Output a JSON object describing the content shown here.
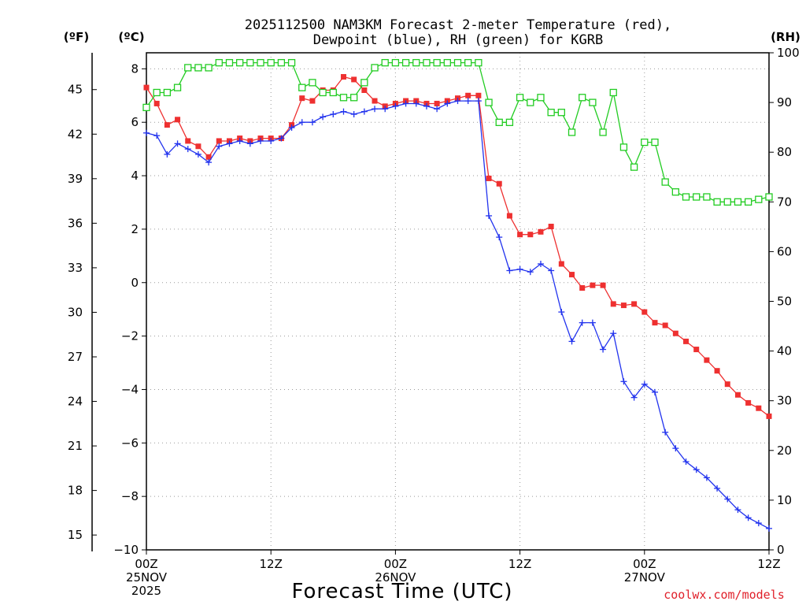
{
  "colors": {
    "temperature": "#ee3030",
    "dewpoint": "#2233ee",
    "rh": "#22cc22",
    "grid": "#9a9a9a",
    "credit": "#e0202a"
  },
  "chart_data": {
    "type": "line",
    "title_line1": "2025112500 NAM3KM Forecast 2-meter Temperature (red),",
    "title_line2": "Dewpoint (blue), RH (green) for KGRB",
    "xlabel": "Forecast Time (UTC)",
    "credit": "coolwx.com/models",
    "unit_f": "(ºF)",
    "unit_c": "(ºC)",
    "unit_rh": "(RH)",
    "x_range_hours": [
      0,
      60
    ],
    "y_celsius_range": [
      -10,
      8.6
    ],
    "y_rh_range": [
      0,
      100
    ],
    "celsius_ticks": [
      "−10",
      "−8",
      "−6",
      "−4",
      "−2",
      "0",
      "2",
      "4",
      "6",
      "8"
    ],
    "fahrenheit_ticks": [
      "15",
      "18",
      "21",
      "24",
      "27",
      "30",
      "33",
      "36",
      "39",
      "42",
      "45"
    ],
    "rh_ticks": [
      "0",
      "10",
      "20",
      "30",
      "40",
      "50",
      "60",
      "70",
      "80",
      "90",
      "100"
    ],
    "x_ticks": [
      {
        "hour": 0,
        "lines": [
          "00Z",
          "25NOV",
          "2025"
        ]
      },
      {
        "hour": 12,
        "lines": [
          "12Z"
        ]
      },
      {
        "hour": 24,
        "lines": [
          "00Z",
          "26NOV"
        ]
      },
      {
        "hour": 36,
        "lines": [
          "12Z"
        ]
      },
      {
        "hour": 48,
        "lines": [
          "00Z",
          "27NOV"
        ]
      },
      {
        "hour": 60,
        "lines": [
          "12Z"
        ]
      }
    ],
    "series": [
      {
        "name": "Temperature",
        "unit": "C",
        "hours": [
          0,
          1,
          2,
          3,
          4,
          5,
          6,
          7,
          8,
          9,
          10,
          11,
          12,
          13,
          14,
          15,
          16,
          17,
          18,
          19,
          20,
          21,
          22,
          23,
          24,
          25,
          26,
          27,
          28,
          29,
          30,
          31,
          32,
          33,
          34,
          35,
          36,
          37,
          38,
          39,
          40,
          41,
          42,
          43,
          44,
          45,
          46,
          47,
          48,
          49,
          50,
          51,
          52,
          53,
          54,
          55,
          56,
          57,
          58,
          59,
          60
        ],
        "values": [
          7.3,
          6.7,
          5.9,
          6.1,
          5.3,
          5.1,
          4.7,
          5.3,
          5.3,
          5.4,
          5.3,
          5.4,
          5.4,
          5.4,
          5.9,
          6.9,
          6.8,
          7.2,
          7.2,
          7.7,
          7.6,
          7.2,
          6.8,
          6.6,
          6.7,
          6.8,
          6.8,
          6.7,
          6.7,
          6.8,
          6.9,
          7.0,
          7.0,
          3.9,
          3.7,
          2.5,
          1.8,
          1.8,
          1.9,
          2.1,
          0.7,
          0.3,
          -0.2,
          -0.1,
          -0.1,
          -0.8,
          -0.85,
          -0.8,
          -1.1,
          -1.5,
          -1.6,
          -1.9,
          -2.2,
          -2.5,
          -2.9,
          -3.3,
          -3.8,
          -4.2,
          -4.5,
          -4.7,
          -5.0
        ]
      },
      {
        "name": "Dewpoint",
        "unit": "C",
        "hours": [
          0,
          1,
          2,
          3,
          4,
          5,
          6,
          7,
          8,
          9,
          10,
          11,
          12,
          13,
          14,
          15,
          16,
          17,
          18,
          19,
          20,
          21,
          22,
          23,
          24,
          25,
          26,
          27,
          28,
          29,
          30,
          31,
          32,
          33,
          34,
          35,
          36,
          37,
          38,
          39,
          40,
          41,
          42,
          43,
          44,
          45,
          46,
          47,
          48,
          49,
          50,
          51,
          52,
          53,
          54,
          55,
          56,
          57,
          58,
          59,
          60
        ],
        "values": [
          5.6,
          5.5,
          4.8,
          5.2,
          5.0,
          4.8,
          4.5,
          5.1,
          5.2,
          5.3,
          5.2,
          5.3,
          5.3,
          5.4,
          5.8,
          6.0,
          6.0,
          6.2,
          6.3,
          6.4,
          6.3,
          6.4,
          6.5,
          6.5,
          6.6,
          6.7,
          6.7,
          6.6,
          6.5,
          6.7,
          6.8,
          6.8,
          6.8,
          2.5,
          1.7,
          0.45,
          0.5,
          0.4,
          0.7,
          0.45,
          -1.1,
          -2.2,
          -1.5,
          -1.5,
          -2.5,
          -1.9,
          -3.7,
          -4.3,
          -3.8,
          -4.1,
          -5.6,
          -6.2,
          -6.7,
          -7.0,
          -7.3,
          -7.7,
          -8.1,
          -8.5,
          -8.8,
          -9.0,
          -9.2
        ]
      },
      {
        "name": "RH",
        "unit": "%",
        "hours": [
          0,
          1,
          2,
          3,
          4,
          5,
          6,
          7,
          8,
          9,
          10,
          11,
          12,
          13,
          14,
          15,
          16,
          17,
          18,
          19,
          20,
          21,
          22,
          23,
          24,
          25,
          26,
          27,
          28,
          29,
          30,
          31,
          32,
          33,
          34,
          35,
          36,
          37,
          38,
          39,
          40,
          41,
          42,
          43,
          44,
          45,
          46,
          47,
          48,
          49,
          50,
          51,
          52,
          53,
          54,
          55,
          56,
          57,
          58,
          59,
          60
        ],
        "values": [
          89,
          92,
          92,
          93,
          97,
          97,
          97,
          98,
          98,
          98,
          98,
          98,
          98,
          98,
          98,
          93,
          94,
          92,
          92,
          91,
          91,
          94,
          97,
          98,
          98,
          98,
          98,
          98,
          98,
          98,
          98,
          98,
          98,
          90,
          86,
          86,
          91,
          90,
          91,
          88,
          88,
          84,
          91,
          90,
          84,
          92,
          81,
          77,
          82,
          82,
          74,
          72,
          71,
          71,
          71,
          70,
          70,
          70,
          70,
          70.5,
          71
        ]
      }
    ]
  }
}
